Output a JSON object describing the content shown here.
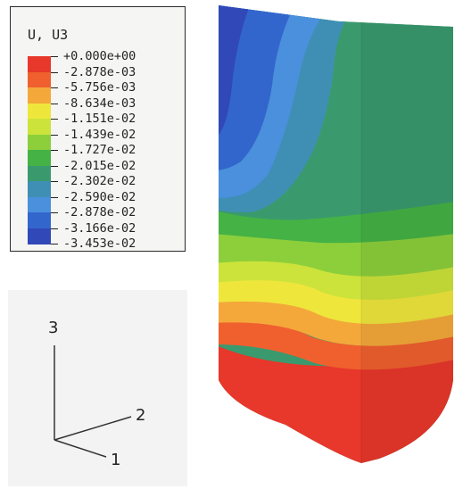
{
  "legend": {
    "title": "U, U3",
    "colors": [
      "#e8372b",
      "#f0602e",
      "#f4a83a",
      "#efe63c",
      "#cbe33a",
      "#8ccf3b",
      "#45b245",
      "#3a9a6e",
      "#3f8fb5",
      "#4a90dd",
      "#3366cc",
      "#3048b8"
    ],
    "labels": [
      "+0.000e+00",
      "-2.878e-03",
      "-5.756e-03",
      "-8.634e-03",
      "-1.151e-02",
      "-1.439e-02",
      "-1.727e-02",
      "-2.015e-02",
      "-2.302e-02",
      "-2.590e-02",
      "-2.878e-02",
      "-3.166e-02",
      "-3.453e-02"
    ]
  },
  "triad": {
    "axis_3": "3",
    "axis_2": "2",
    "axis_1": "1"
  }
}
